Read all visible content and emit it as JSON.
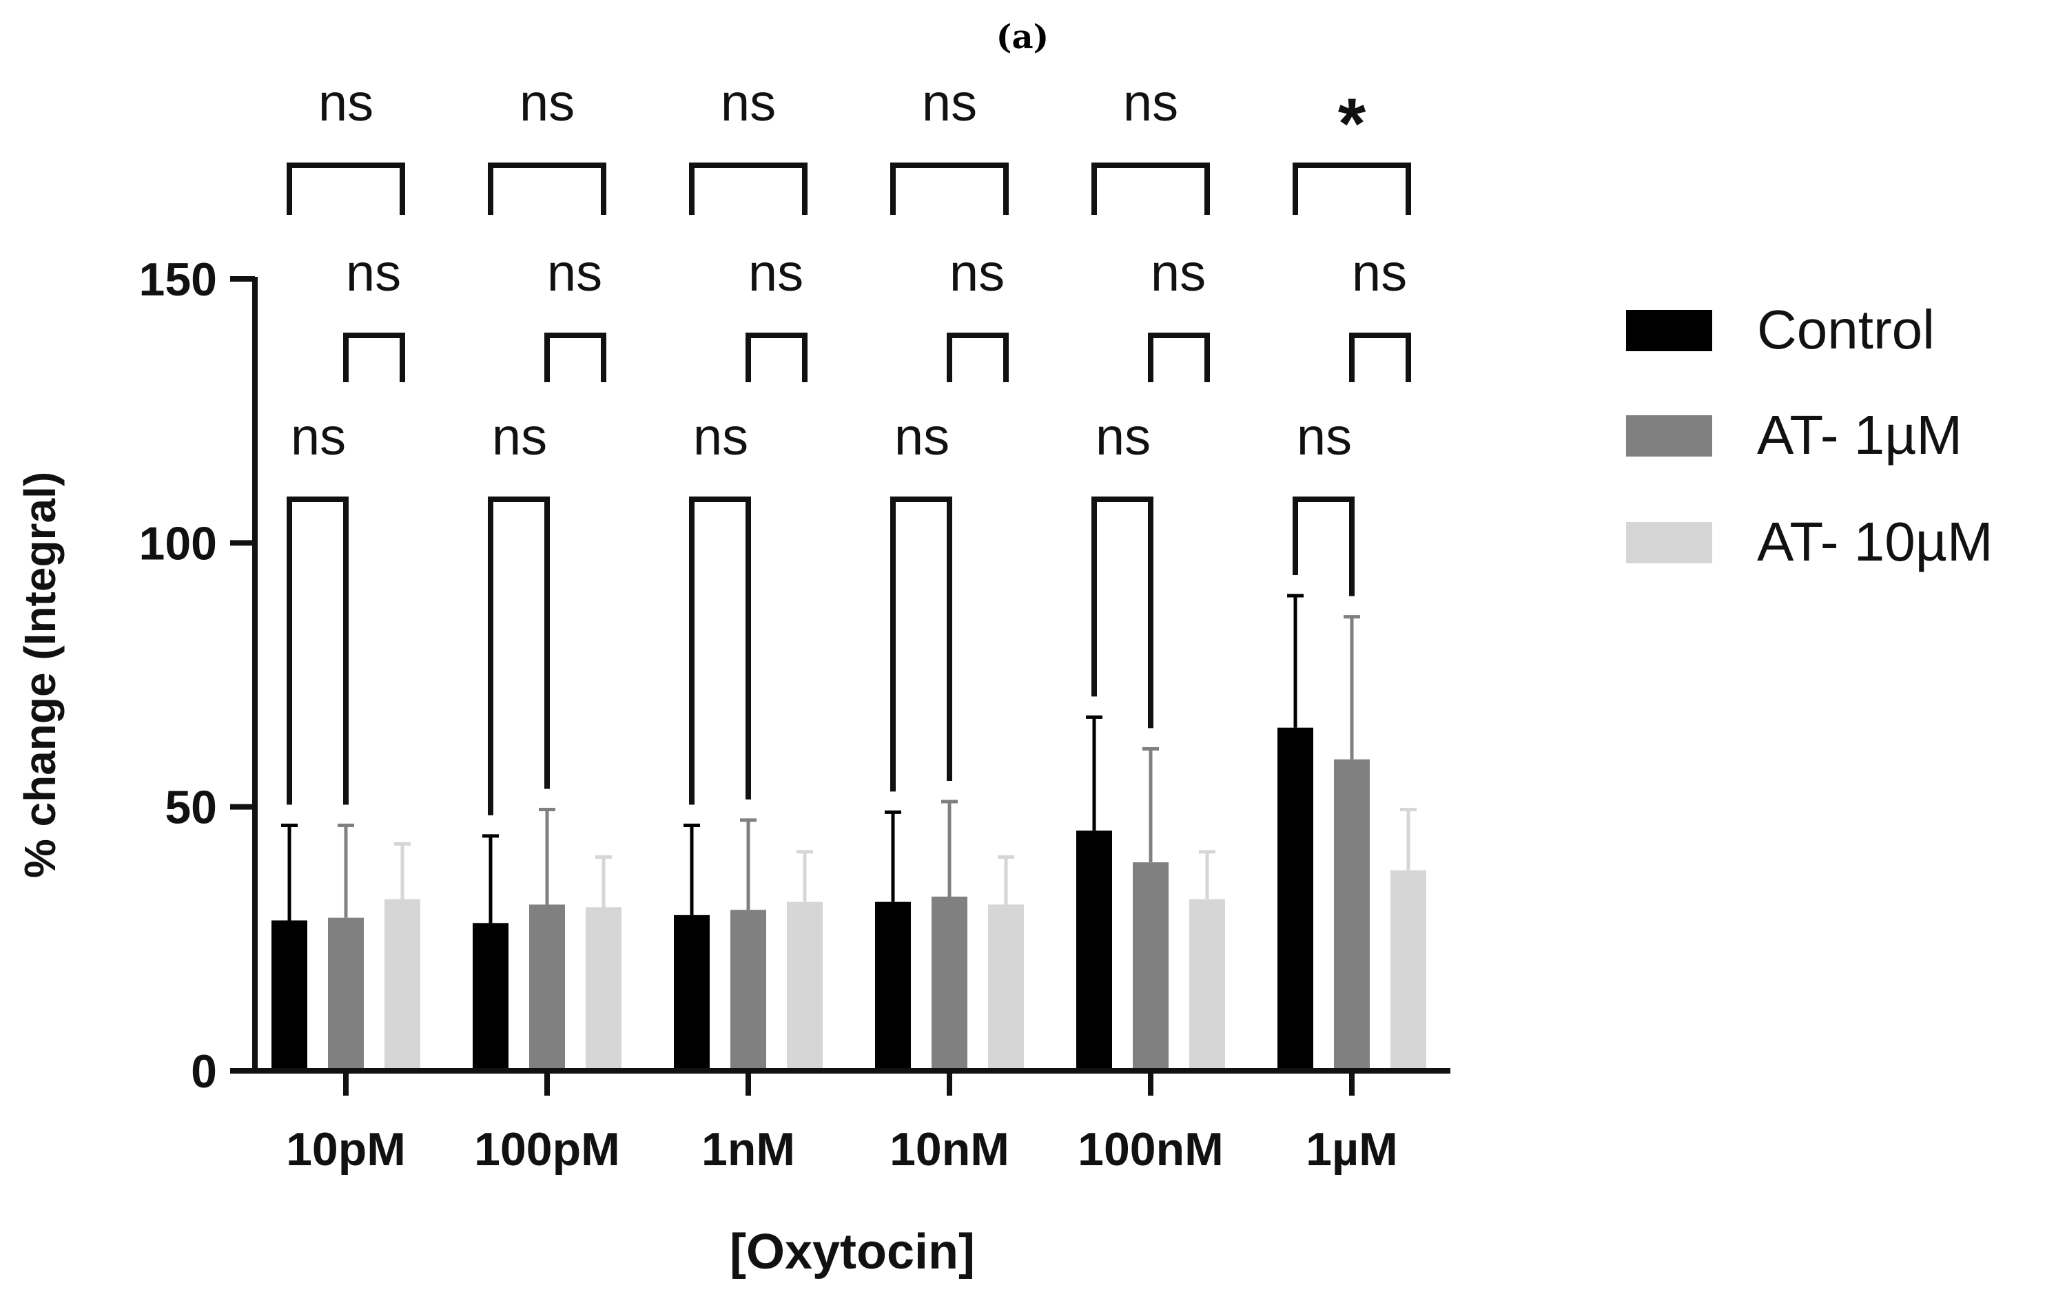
{
  "panel_label": "(a)",
  "colors": {
    "Control": "#000000",
    "AT- 1µM": "#808080",
    "AT- 10µM": "#d6d6d6",
    "axis": "#111111"
  },
  "chart_data": {
    "type": "bar",
    "title": "",
    "xlabel": "[Oxytocin]",
    "ylabel": "% change (Integral)",
    "ylim": [
      0,
      150
    ],
    "yticks": [
      0,
      50,
      100,
      150
    ],
    "categories": [
      "10pM",
      "100pM",
      "1nM",
      "10nM",
      "100nM",
      "1µM"
    ],
    "series": [
      {
        "name": "Control",
        "values": [
          28.5,
          28,
          29.5,
          32,
          45.5,
          65
        ],
        "errors": [
          18,
          16.5,
          17,
          17,
          21.5,
          25
        ]
      },
      {
        "name": "AT- 1µM",
        "values": [
          29,
          31.5,
          30.5,
          33,
          39.5,
          59
        ],
        "errors": [
          17.5,
          18,
          17,
          18,
          21.5,
          27
        ]
      },
      {
        "name": "AT- 10µM",
        "values": [
          32.5,
          31,
          32,
          31.5,
          32.5,
          38
        ],
        "errors": [
          10.5,
          9.5,
          9.5,
          9,
          9,
          11.5
        ]
      }
    ],
    "legend": [
      "Control",
      "AT- 1µM",
      "AT- 10µM"
    ],
    "legend_position": "right",
    "significance": [
      {
        "group": "10pM",
        "ctrl_vs_at10": "ns",
        "at1_vs_at10": "ns",
        "ctrl_vs_at1": "ns"
      },
      {
        "group": "100pM",
        "ctrl_vs_at10": "ns",
        "at1_vs_at10": "ns",
        "ctrl_vs_at1": "ns"
      },
      {
        "group": "1nM",
        "ctrl_vs_at10": "ns",
        "at1_vs_at10": "ns",
        "ctrl_vs_at1": "ns"
      },
      {
        "group": "10nM",
        "ctrl_vs_at10": "ns",
        "at1_vs_at10": "ns",
        "ctrl_vs_at1": "ns"
      },
      {
        "group": "100nM",
        "ctrl_vs_at10": "ns",
        "at1_vs_at10": "ns",
        "ctrl_vs_at1": "ns"
      },
      {
        "group": "1µM",
        "ctrl_vs_at10": "*",
        "at1_vs_at10": "ns",
        "ctrl_vs_at1": "ns"
      }
    ]
  }
}
